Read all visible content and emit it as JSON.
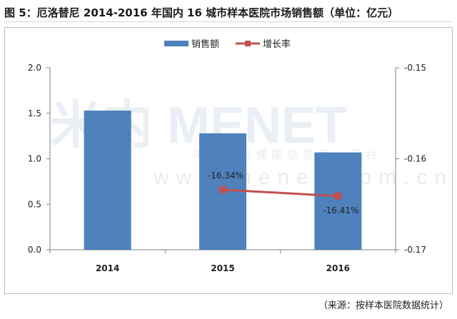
{
  "title": "图 5：厄洛替尼 2014-2016 年国内 16 城市样本医院市场销售额（单位：亿元）",
  "source": "（来源：按样本医院数据统计）",
  "watermark": {
    "logo": "米内 MENET",
    "tagline": "中国医药健康信息第一平台",
    "url": "www.menet.com.cn"
  },
  "colors": {
    "bar": "#4f81bd",
    "line": "#c0504d",
    "axis": "#808080"
  },
  "chart_data": {
    "type": "bar",
    "categories": [
      "2014",
      "2015",
      "2016"
    ],
    "legend": {
      "position": "top",
      "entries": [
        "销售额",
        "增长率"
      ]
    },
    "series": [
      {
        "name": "销售额",
        "type": "bar",
        "axis": "left",
        "values": [
          1.53,
          1.28,
          1.07
        ]
      },
      {
        "name": "增长率",
        "type": "line",
        "axis": "right",
        "values": [
          null,
          -0.1634,
          -0.1641
        ],
        "labels": [
          "",
          "-16.34%",
          "-16.41%"
        ]
      }
    ],
    "y_left": {
      "ylim": [
        0,
        2.0
      ],
      "ticks": [
        "0.0",
        "0.5",
        "1.0",
        "1.5",
        "2.0"
      ]
    },
    "y_right": {
      "ylim": [
        -0.17,
        -0.15
      ],
      "ticks": [
        "-0.17",
        "-0.16",
        "-0.15"
      ]
    },
    "grid": false
  }
}
